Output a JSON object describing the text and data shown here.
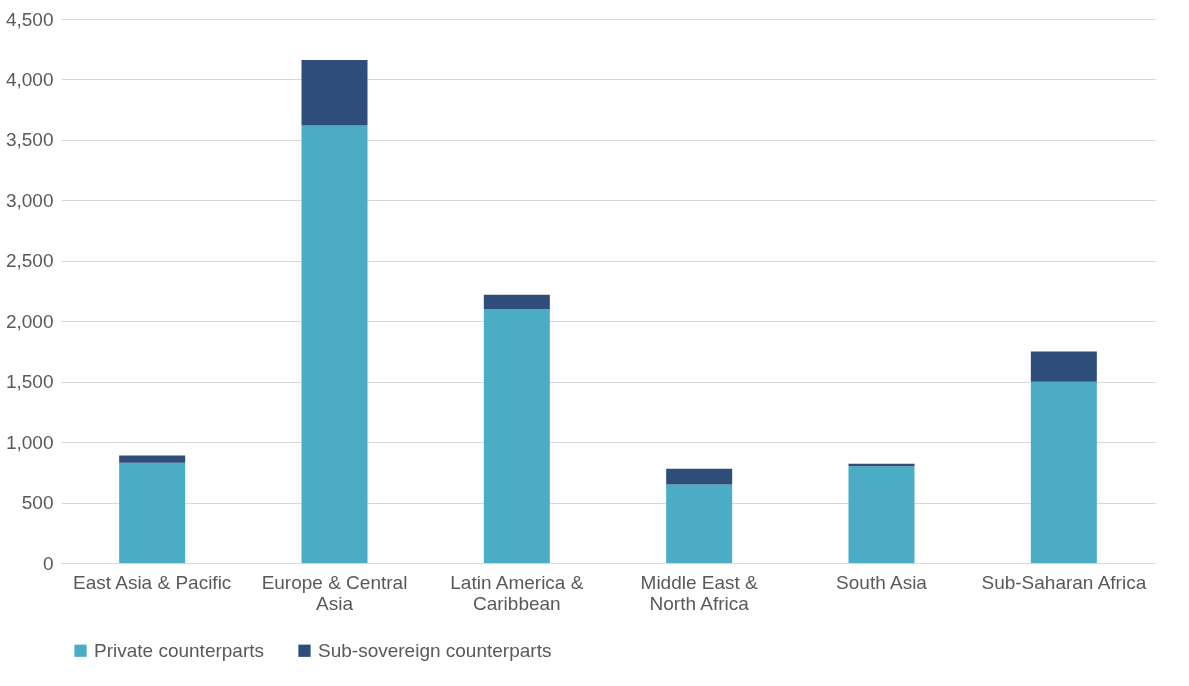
{
  "chart_data": {
    "type": "bar",
    "stacked": true,
    "categories": [
      "East Asia & Pacific",
      "Europe & Central Asia",
      "Latin America & Caribbean",
      "Middle East & North Africa",
      "South Asia",
      "Sub-Saharan Africa"
    ],
    "series": [
      {
        "name": "Private counterparts",
        "color": "#4bacc6",
        "values": [
          830,
          3620,
          2100,
          650,
          800,
          1500
        ]
      },
      {
        "name": "Sub-sovereign counterparts",
        "color": "#2e4d78",
        "values": [
          60,
          540,
          120,
          130,
          20,
          250
        ]
      }
    ],
    "ylim": [
      0,
      4500
    ],
    "yticks": [
      0,
      500,
      {
        "value": 1000,
        "label": "1,000"
      },
      {
        "value": 1500,
        "label": "1,500"
      },
      {
        "value": 2000,
        "label": "2,000"
      },
      {
        "value": 2500,
        "label": "2,500"
      },
      {
        "value": 3000,
        "label": "3,000"
      },
      {
        "value": 3500,
        "label": "3,500"
      },
      {
        "value": 4000,
        "label": "4,000"
      },
      {
        "value": 4500,
        "label": "4,500"
      }
    ],
    "grid": "y",
    "legend": "bottom"
  }
}
